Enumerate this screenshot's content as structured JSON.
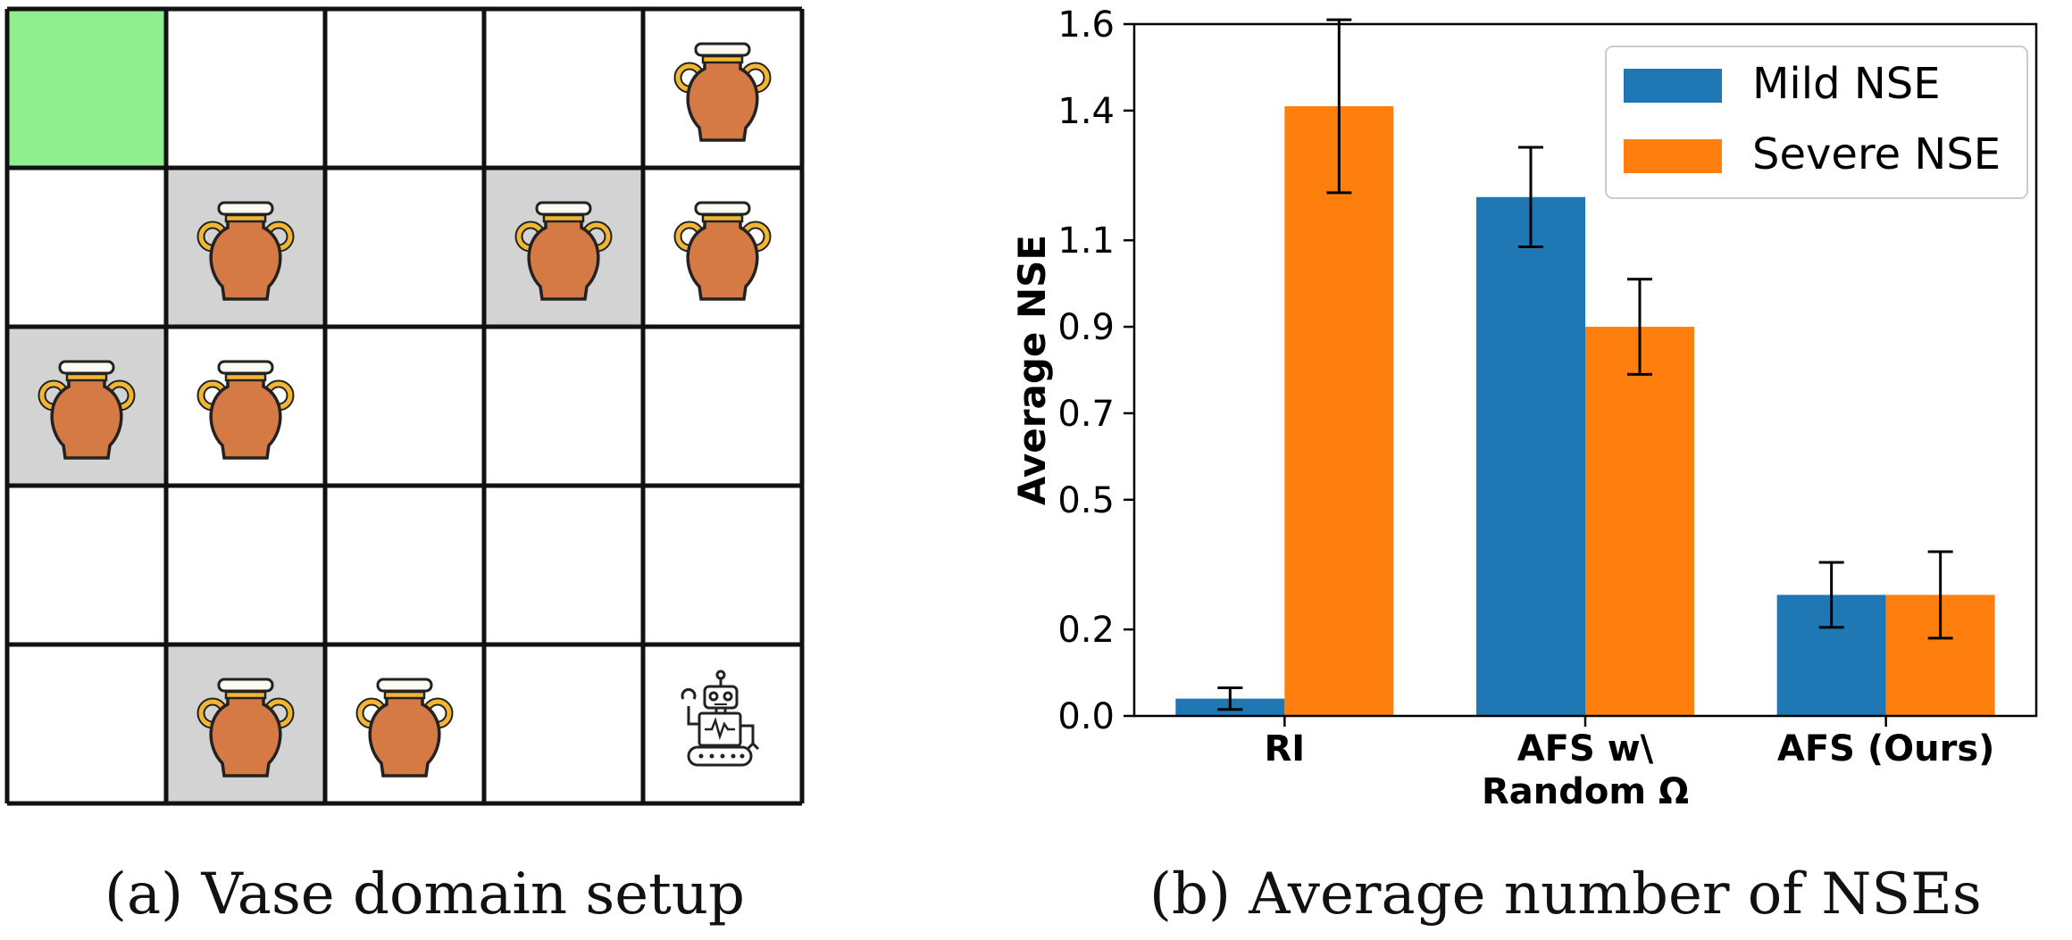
{
  "captions": {
    "a": "(a) Vase domain setup",
    "b": "(b) Average number of NSEs"
  },
  "gridworld": {
    "rows": 5,
    "cols": 5,
    "colors": {
      "goal": "#90ee90",
      "shaded": "#d3d3d3",
      "empty": "#ffffff",
      "line": "#111111"
    },
    "cells": [
      [
        {
          "fill": "goal",
          "item": null
        },
        {
          "fill": "empty",
          "item": null
        },
        {
          "fill": "empty",
          "item": null
        },
        {
          "fill": "empty",
          "item": null
        },
        {
          "fill": "empty",
          "item": "vase"
        }
      ],
      [
        {
          "fill": "empty",
          "item": null
        },
        {
          "fill": "shaded",
          "item": "vase"
        },
        {
          "fill": "empty",
          "item": null
        },
        {
          "fill": "shaded",
          "item": "vase"
        },
        {
          "fill": "empty",
          "item": "vase"
        }
      ],
      [
        {
          "fill": "shaded",
          "item": "vase"
        },
        {
          "fill": "empty",
          "item": "vase"
        },
        {
          "fill": "empty",
          "item": null
        },
        {
          "fill": "empty",
          "item": null
        },
        {
          "fill": "empty",
          "item": null
        }
      ],
      [
        {
          "fill": "empty",
          "item": null
        },
        {
          "fill": "empty",
          "item": null
        },
        {
          "fill": "empty",
          "item": null
        },
        {
          "fill": "empty",
          "item": null
        },
        {
          "fill": "empty",
          "item": null
        }
      ],
      [
        {
          "fill": "empty",
          "item": null
        },
        {
          "fill": "shaded",
          "item": "vase"
        },
        {
          "fill": "empty",
          "item": "vase"
        },
        {
          "fill": "empty",
          "item": null
        },
        {
          "fill": "empty",
          "item": "robot"
        }
      ]
    ]
  },
  "chart_data": {
    "type": "bar",
    "categories": [
      "RI",
      "AFS w\\\nRandom Ω",
      "AFS (Ours)"
    ],
    "series": [
      {
        "name": "Mild NSE",
        "color": "#1f77b4",
        "values": [
          0.04,
          1.2,
          0.28
        ],
        "errors": [
          0.025,
          0.115,
          0.075
        ]
      },
      {
        "name": "Severe NSE",
        "color": "#ff7f0e",
        "values": [
          1.41,
          0.9,
          0.28
        ],
        "errors": [
          0.2,
          0.11,
          0.1
        ]
      }
    ],
    "title": "",
    "xlabel": "",
    "ylabel": "Average NSE",
    "ylim": [
      0,
      1.6
    ],
    "yticks": [
      0.0,
      0.2,
      0.5,
      0.7,
      0.9,
      1.1,
      1.4,
      1.6
    ],
    "ytick_labels": [
      "0.0",
      "0.2",
      "0.5",
      "0.7",
      "0.9",
      "1.1",
      "1.4",
      "1.6"
    ],
    "grid": false,
    "legend": "top-right"
  }
}
